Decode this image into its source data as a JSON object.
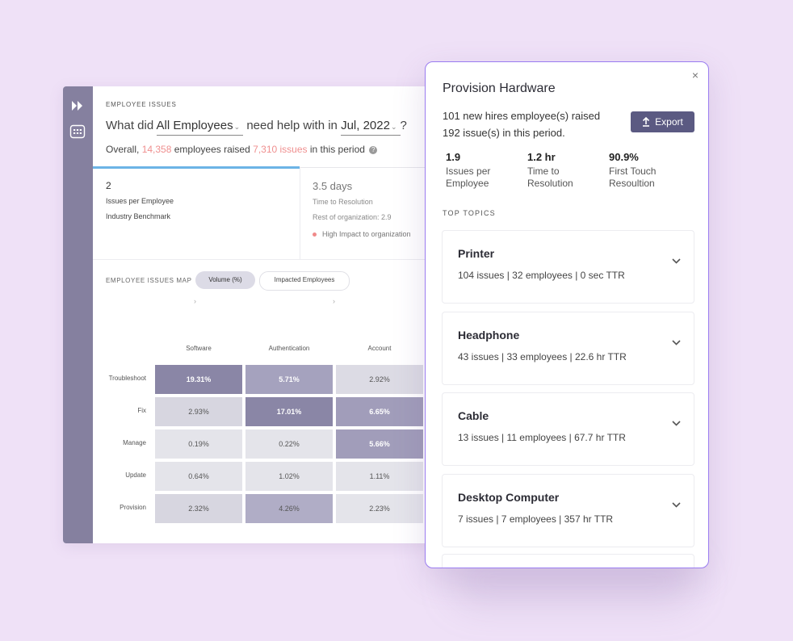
{
  "dashboard": {
    "eyebrow": "EMPLOYEE ISSUES",
    "question": {
      "prefix": "What did",
      "group": "All Employees",
      "middle": "need help with in",
      "period": "Jul, 2022",
      "suffix": "?"
    },
    "summary": {
      "prefix": "Overall,",
      "employees": "14,358",
      "middle": "employees raised",
      "issues": "7,310 issues",
      "suffix": "in this period",
      "help_icon": "?"
    },
    "kpi_primary": {
      "value": "2",
      "label": "Issues per Employee",
      "sub": "Industry Benchmark"
    },
    "kpi_secondary": {
      "value": "3.5 days",
      "label": "Time to Resolution",
      "sub": "Rest of organization: 2.9",
      "impact": "High Impact to organization"
    },
    "map": {
      "title": "EMPLOYEE ISSUES MAP",
      "tabs": [
        "Volume (%)",
        "Impacted Employees"
      ],
      "columns": [
        "Software",
        "Authentication",
        "Account"
      ],
      "rows": [
        {
          "label": "Troubleshoot",
          "values": [
            "19.31%",
            "5.71%",
            "2.92%"
          ]
        },
        {
          "label": "Fix",
          "values": [
            "2.93%",
            "17.01%",
            "6.65%"
          ]
        },
        {
          "label": "Manage",
          "values": [
            "0.19%",
            "0.22%",
            "5.66%"
          ]
        },
        {
          "label": "Update",
          "values": [
            "0.64%",
            "1.02%",
            "1.11%"
          ]
        },
        {
          "label": "Provision",
          "values": [
            "2.32%",
            "4.26%",
            "2.23%"
          ]
        }
      ],
      "shades": [
        [
          "#8a86a6",
          "#a5a2be",
          "#dcdbe4"
        ],
        [
          "#d7d6e0",
          "#8a86a6",
          "#a19dba"
        ],
        [
          "#e4e4ea",
          "#e4e4ea",
          "#a19dba"
        ],
        [
          "#e4e4ea",
          "#e4e4ea",
          "#e4e4ea"
        ],
        [
          "#d7d6e0",
          "#b0adc6",
          "#e4e4ea"
        ]
      ],
      "dark_text_cells": [
        "0-0",
        "0-1",
        "1-1",
        "1-2",
        "2-2"
      ]
    }
  },
  "panel": {
    "title": "Provision Hardware",
    "desc_line1": "101 new hires employee(s) raised",
    "desc_line2": "192 issue(s) in this period.",
    "export_label": "Export",
    "close": "×",
    "stats": [
      {
        "value": "1.9",
        "label": "Issues per Employee"
      },
      {
        "value": "1.2 hr",
        "label": "Time to Resolution"
      },
      {
        "value": "90.9%",
        "label": "First Touch Resoultion"
      }
    ],
    "topics_title": "TOP TOPICS",
    "topics": [
      {
        "name": "Printer",
        "stats": "104 issues | 32 employees | 0 sec TTR"
      },
      {
        "name": "Headphone",
        "stats": "43 issues | 33 employees | 22.6 hr TTR"
      },
      {
        "name": "Cable",
        "stats": "13 issues | 11 employees | 67.7 hr TTR"
      },
      {
        "name": "Desktop Computer",
        "stats": "7 issues | 7 employees | 357 hr TTR"
      }
    ]
  },
  "colors": {
    "accent": "#5b5a82",
    "rail": "#85809f",
    "highlight": "#ef8f8f",
    "border": "#9a7cf0",
    "background": "#efe1f7"
  }
}
